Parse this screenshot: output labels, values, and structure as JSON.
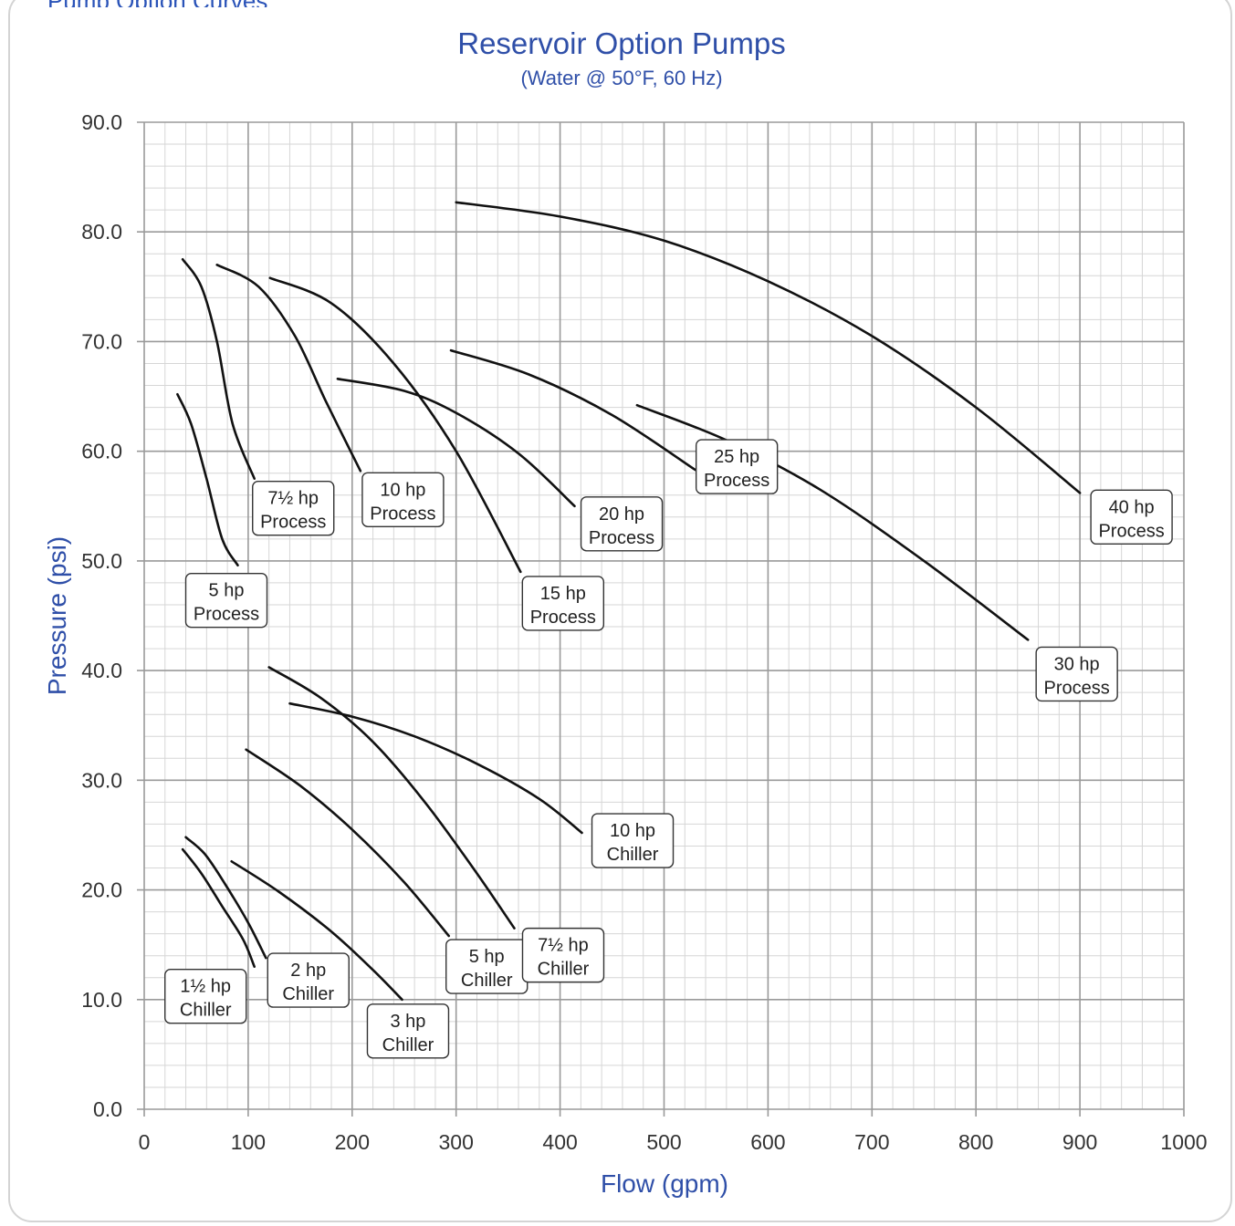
{
  "page": {
    "header_partial_text": "Pump Option Curves"
  },
  "chart_data": {
    "type": "line",
    "title": "Reservoir Option Pumps",
    "subtitle": "(Water @ 50°F, 60 Hz)",
    "xlabel": "Flow (gpm)",
    "ylabel": "Pressure (psi)",
    "xlim": [
      0,
      1000
    ],
    "ylim": [
      0,
      90
    ],
    "x_ticks": [
      "0",
      "100",
      "200",
      "300",
      "400",
      "500",
      "600",
      "700",
      "800",
      "900",
      "1000"
    ],
    "y_ticks": [
      "0.0",
      "10.0",
      "20.0",
      "30.0",
      "40.0",
      "50.0",
      "60.0",
      "70.0",
      "80.0",
      "90.0"
    ],
    "grid": true,
    "colors": {
      "curve": "#111111",
      "title": "#2f4fa8",
      "grid_major": "#9a9a9a",
      "grid_minor": "#d6d6d6"
    },
    "series": [
      {
        "name": "1½ hp Chiller",
        "label_lines": [
          "1½ hp",
          "Chiller"
        ],
        "points": [
          [
            37,
            23.7
          ],
          [
            55,
            21.5
          ],
          [
            75,
            18.5
          ],
          [
            95,
            15.5
          ],
          [
            106,
            13
          ]
        ]
      },
      {
        "name": "2 hp Chiller",
        "label_lines": [
          "2 hp",
          "Chiller"
        ],
        "points": [
          [
            40,
            24.8
          ],
          [
            58,
            23.3
          ],
          [
            78,
            20.5
          ],
          [
            100,
            17
          ],
          [
            117,
            13.8
          ]
        ]
      },
      {
        "name": "3 hp Chiller",
        "label_lines": [
          "3 hp",
          "Chiller"
        ],
        "points": [
          [
            84,
            22.6
          ],
          [
            130,
            19.8
          ],
          [
            180,
            16.2
          ],
          [
            220,
            12.7
          ],
          [
            248,
            10
          ]
        ]
      },
      {
        "name": "5 hp Chiller",
        "label_lines": [
          "5 hp",
          "Chiller"
        ],
        "points": [
          [
            98,
            32.8
          ],
          [
            150,
            29.5
          ],
          [
            200,
            25.5
          ],
          [
            250,
            20.7
          ],
          [
            293,
            15.8
          ]
        ]
      },
      {
        "name": "7½ hp Chiller",
        "label_lines": [
          "7½ hp",
          "Chiller"
        ],
        "points": [
          [
            120,
            40.3
          ],
          [
            170,
            37.5
          ],
          [
            220,
            33.5
          ],
          [
            270,
            28
          ],
          [
            320,
            21.5
          ],
          [
            356,
            16.5
          ]
        ]
      },
      {
        "name": "10 hp Chiller",
        "label_lines": [
          "10 hp",
          "Chiller"
        ],
        "points": [
          [
            140,
            37
          ],
          [
            200,
            35.8
          ],
          [
            260,
            34
          ],
          [
            320,
            31.5
          ],
          [
            380,
            28.3
          ],
          [
            421,
            25.2
          ]
        ]
      },
      {
        "name": "5 hp Process",
        "label_lines": [
          "5 hp",
          "Process"
        ],
        "points": [
          [
            32,
            65.2
          ],
          [
            45,
            62.5
          ],
          [
            60,
            57.5
          ],
          [
            75,
            52
          ],
          [
            90,
            49.6
          ]
        ]
      },
      {
        "name": "7½ hp Process",
        "label_lines": [
          "7½ hp",
          "Process"
        ],
        "points": [
          [
            37,
            77.5
          ],
          [
            55,
            75
          ],
          [
            70,
            70
          ],
          [
            85,
            62.5
          ],
          [
            106,
            57.5
          ]
        ]
      },
      {
        "name": "10 hp Process",
        "label_lines": [
          "10 hp",
          "Process"
        ],
        "points": [
          [
            70,
            77
          ],
          [
            110,
            75
          ],
          [
            145,
            70.5
          ],
          [
            175,
            64.5
          ],
          [
            208,
            58.2
          ]
        ]
      },
      {
        "name": "15 hp Process",
        "label_lines": [
          "15 hp",
          "Process"
        ],
        "points": [
          [
            121,
            75.8
          ],
          [
            180,
            73.5
          ],
          [
            240,
            68
          ],
          [
            300,
            60
          ],
          [
            362,
            49
          ]
        ]
      },
      {
        "name": "20 hp Process",
        "label_lines": [
          "20 hp",
          "Process"
        ],
        "points": [
          [
            186,
            66.6
          ],
          [
            250,
            65.5
          ],
          [
            300,
            63.5
          ],
          [
            360,
            59.8
          ],
          [
            414,
            55
          ]
        ]
      },
      {
        "name": "25 hp Process",
        "label_lines": [
          "25 hp",
          "Process"
        ],
        "points": [
          [
            295,
            69.2
          ],
          [
            370,
            67
          ],
          [
            450,
            63.3
          ],
          [
            530,
            58.3
          ]
        ]
      },
      {
        "name": "30 hp Process",
        "label_lines": [
          "30 hp",
          "Process"
        ],
        "points": [
          [
            474,
            64.2
          ],
          [
            560,
            61
          ],
          [
            650,
            56.5
          ],
          [
            750,
            50
          ],
          [
            850,
            42.8
          ]
        ]
      },
      {
        "name": "40 hp Process",
        "label_lines": [
          "40 hp",
          "Process"
        ],
        "points": [
          [
            300,
            82.7
          ],
          [
            400,
            81.4
          ],
          [
            500,
            79.2
          ],
          [
            600,
            75.5
          ],
          [
            700,
            70.5
          ],
          [
            800,
            64
          ],
          [
            900,
            56.2
          ]
        ]
      }
    ]
  }
}
